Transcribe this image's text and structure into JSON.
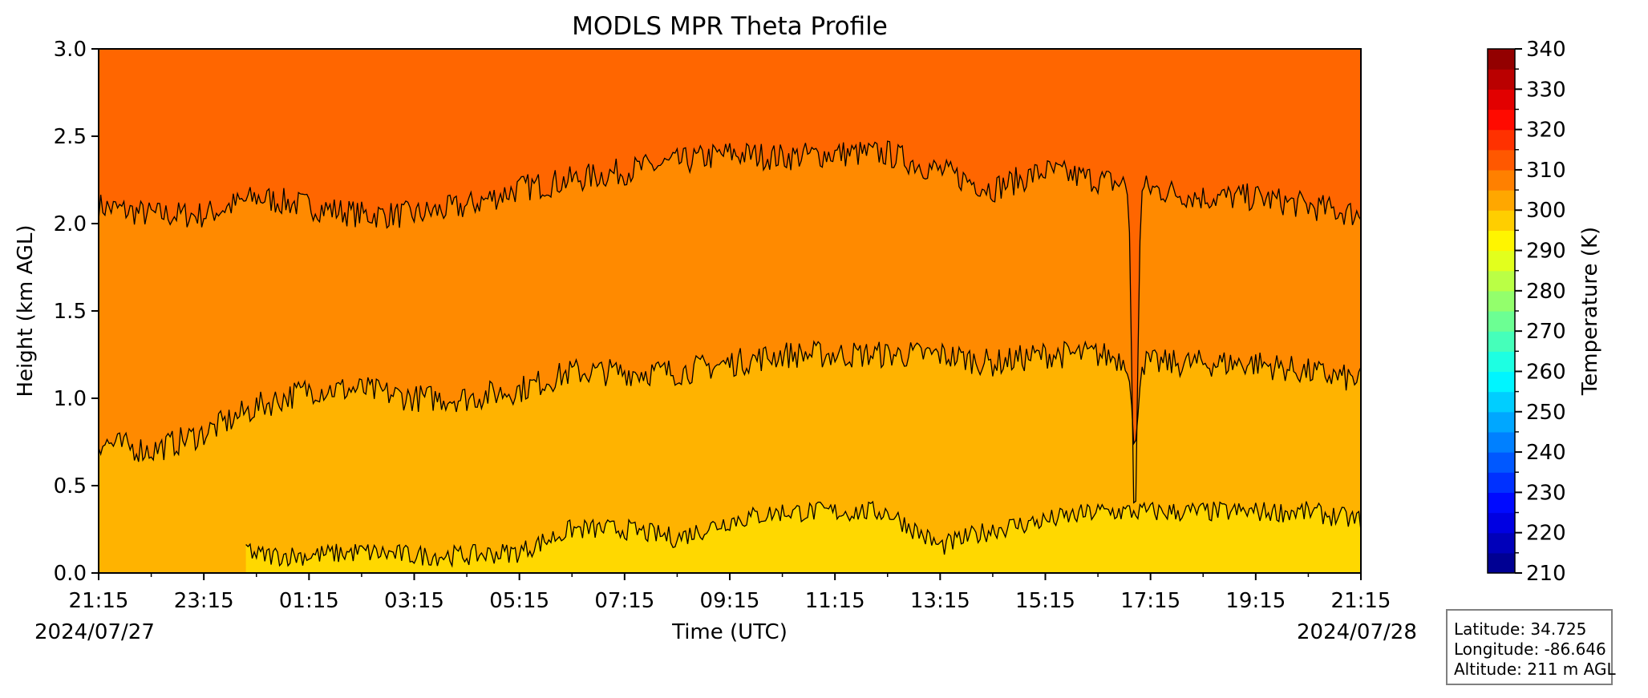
{
  "chart_data": {
    "type": "heatmap",
    "title": "MODLS MPR Theta Profile",
    "xlabel": "Time (UTC)",
    "ylabel": "Height (km AGL)",
    "x_ticks": [
      "21:15",
      "23:15",
      "01:15",
      "03:15",
      "05:15",
      "07:15",
      "09:15",
      "11:15",
      "13:15",
      "15:15",
      "17:15",
      "19:15",
      "21:15"
    ],
    "x_range_hours": [
      0,
      24
    ],
    "start_date": "2024/07/27",
    "end_date": "2024/07/28",
    "ylim": [
      0,
      3.0
    ],
    "y_ticks": [
      "0.0",
      "0.5",
      "1.0",
      "1.5",
      "2.0",
      "2.5",
      "3.0"
    ],
    "colorbar": {
      "label": "Temperature (K)",
      "range": [
        210,
        340
      ],
      "step": 5,
      "ticks": [
        "210",
        "220",
        "230",
        "240",
        "250",
        "260",
        "270",
        "280",
        "290",
        "300",
        "310",
        "320",
        "330",
        "340"
      ]
    },
    "contour_levels_K": [
      295,
      300,
      305,
      310
    ],
    "contour_heights_km": {
      "310": {
        "hours": [
          0,
          1,
          2,
          3,
          4,
          5,
          6,
          7,
          8,
          9,
          10,
          11,
          12,
          13,
          14,
          15,
          16,
          17,
          18,
          19,
          20,
          21,
          22,
          23,
          24
        ],
        "height": [
          2.1,
          2.05,
          2.05,
          2.15,
          2.1,
          2.05,
          2.05,
          2.1,
          2.2,
          2.25,
          2.3,
          2.35,
          2.4,
          2.38,
          2.4,
          2.4,
          2.3,
          2.2,
          2.3,
          2.25,
          2.2,
          2.15,
          2.15,
          2.1,
          2.05
        ]
      },
      "305": {
        "hours": [
          0,
          1,
          2,
          3,
          4,
          5,
          6,
          7,
          8,
          9,
          10,
          11,
          12,
          13,
          14,
          15,
          16,
          17,
          18,
          19,
          20,
          21,
          22,
          23,
          24
        ],
        "height": [
          0.75,
          0.7,
          0.8,
          0.95,
          1.05,
          1.05,
          1.0,
          1.0,
          1.05,
          1.15,
          1.15,
          1.15,
          1.2,
          1.25,
          1.25,
          1.25,
          1.25,
          1.2,
          1.25,
          1.25,
          1.2,
          1.2,
          1.2,
          1.15,
          1.1
        ]
      },
      "300": {
        "hours": [
          2.8,
          3,
          4,
          5,
          6,
          7,
          8,
          9,
          10,
          11,
          12,
          13,
          14,
          15,
          16,
          17,
          18,
          19,
          20,
          21,
          22,
          23,
          24
        ],
        "height": [
          0.15,
          0.1,
          0.1,
          0.12,
          0.1,
          0.1,
          0.12,
          0.25,
          0.25,
          0.2,
          0.3,
          0.35,
          0.35,
          0.35,
          0.15,
          0.25,
          0.3,
          0.35,
          0.35,
          0.35,
          0.35,
          0.35,
          0.3
        ]
      }
    },
    "dip_at_hours": 19.7,
    "dip_min_km": 0.5,
    "colors": {
      "above_310": "#ff6600",
      "305_310": "#ff8a00",
      "300_305": "#ffb300",
      "below_300": "#ffd800"
    }
  },
  "info": {
    "latitude": "Latitude: 34.725",
    "longitude": "Longitude: -86.646",
    "altitude": "Altitude: 211 m AGL"
  }
}
